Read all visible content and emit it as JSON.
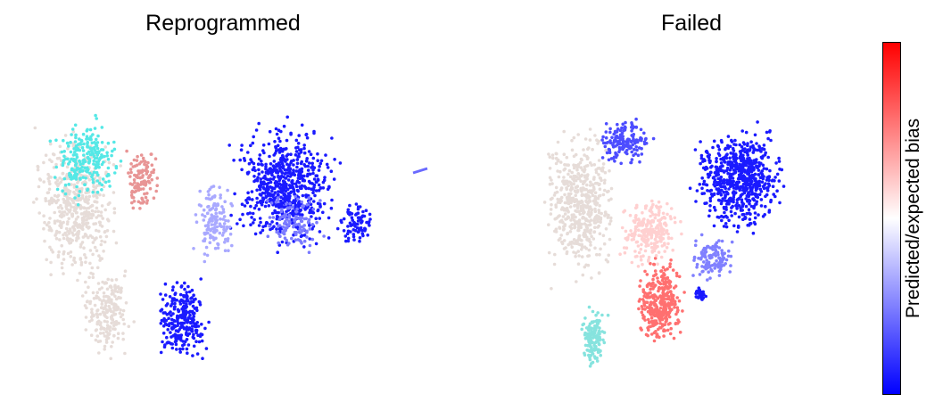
{
  "titles": {
    "left": "Reprogrammed",
    "right": "Failed"
  },
  "colorbar": {
    "label": "Predicted/expected bias",
    "colormap": [
      "#0000ff",
      "#ffffff",
      "#ff0000"
    ]
  },
  "colors": {
    "background_cells": "#e6dcd8",
    "cyan_cells": "#55e8e6",
    "blue": "#1a1aff",
    "red": "#ff7070"
  },
  "chart_data": [
    {
      "type": "scatter",
      "title": "Reprogrammed",
      "axes_visible": false,
      "series": [
        {
          "color": "#e6dcd8",
          "points": []
        },
        {
          "color": "#55e8e6",
          "points": []
        },
        {
          "color": "#e88a8a",
          "points": []
        },
        {
          "color": "#1a1aff",
          "points": []
        }
      ]
    },
    {
      "type": "scatter",
      "title": "Failed",
      "axes_visible": false,
      "series": [
        {
          "color": "#e6dcd8",
          "points": []
        },
        {
          "color": "#7ee6e0",
          "points": []
        },
        {
          "color": "#ff7070",
          "points": []
        },
        {
          "color": "#1a1aff",
          "points": []
        }
      ]
    }
  ]
}
